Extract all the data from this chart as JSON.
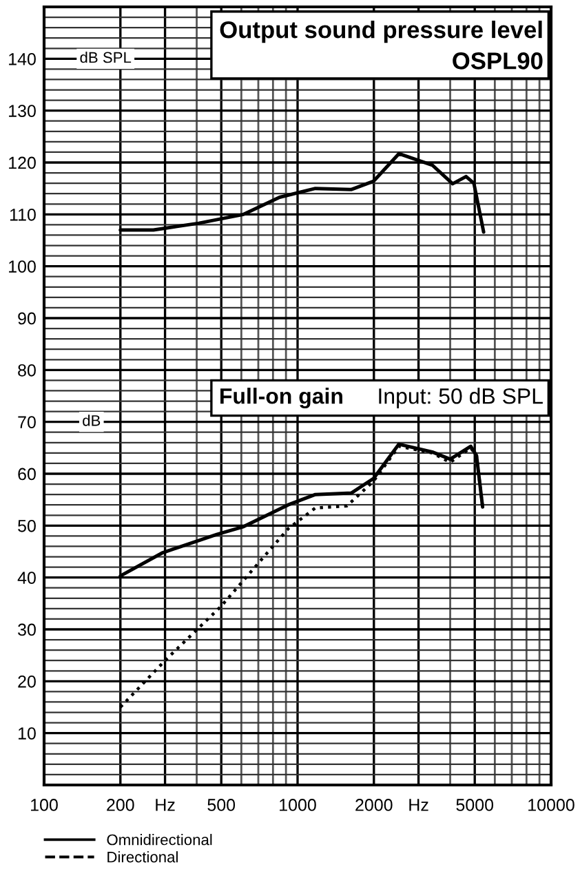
{
  "chart_data": {
    "type": "line",
    "annotations": [
      "Output sound pressure level",
      "OSPL90",
      "Full-on gain",
      "Input: 50 dB SPL",
      "dB SPL",
      "dB"
    ],
    "series": [
      {
        "color": "#000000",
        "line_style": "solid",
        "x": [
          200,
          270,
          408,
          612,
          849,
          1175,
          1632,
          1995,
          2510,
          3400,
          4090,
          4620,
          4960,
          5420
        ],
        "values": [
          107,
          107,
          108.3,
          110,
          113.3,
          115,
          114.8,
          116.4,
          121.7,
          119.5,
          115.9,
          117.3,
          116,
          106.6
        ]
      },
      {
        "name": "Omnidirectional",
        "color": "#000000",
        "line_style": "solid",
        "x": [
          200,
          294,
          480,
          612,
          918,
          1175,
          1632,
          1995,
          2510,
          3400,
          4000,
          4820,
          5080,
          5370
        ],
        "values": [
          40.3,
          44.8,
          48.3,
          49.8,
          54.0,
          56.0,
          56.3,
          59.1,
          65.7,
          64.2,
          62.8,
          65.3,
          63.5,
          53.6
        ]
      },
      {
        "name": "Directional",
        "color": "#000000",
        "line_style": "dotted",
        "x": [
          200,
          300,
          498,
          918,
          1175,
          1566,
          1995,
          2510,
          3400,
          4000,
          4820,
          5080,
          5370
        ],
        "values": [
          15.0,
          24.0,
          34.4,
          49.4,
          53.4,
          53.8,
          58.6,
          65.3,
          64.0,
          62.2,
          65.0,
          63.5,
          53.6
        ]
      }
    ],
    "log": "x",
    "xlim": [
      100,
      10000
    ],
    "xticks": [
      100,
      200,
      {
        "value": 300,
        "label": "Hz"
      },
      {
        "value": 400,
        "label": null
      },
      500,
      {
        "value": 600,
        "label": null
      },
      {
        "value": 700,
        "label": null
      },
      {
        "value": 800,
        "label": null
      },
      {
        "value": 900,
        "label": null
      },
      1000,
      2000,
      {
        "value": 3000,
        "label": "Hz"
      },
      {
        "value": 4000,
        "label": null
      },
      5000,
      {
        "value": 6000,
        "label": null
      },
      {
        "value": 7000,
        "label": null
      },
      {
        "value": 8000,
        "label": null
      },
      {
        "value": 9000,
        "label": null
      },
      10000
    ],
    "ylim": [
      0,
      150
    ],
    "yticks": [
      {
        "value": 0,
        "label": null
      },
      {
        "value": 2,
        "label": null
      },
      {
        "value": 4,
        "label": null
      },
      {
        "value": 6,
        "label": null
      },
      {
        "value": 8,
        "label": null
      },
      10,
      {
        "value": 12,
        "label": null
      },
      {
        "value": 14,
        "label": null
      },
      {
        "value": 16,
        "label": null
      },
      {
        "value": 18,
        "label": null
      },
      20,
      {
        "value": 22,
        "label": null
      },
      {
        "value": 24,
        "label": null
      },
      {
        "value": 26,
        "label": null
      },
      {
        "value": 28,
        "label": null
      },
      30,
      {
        "value": 32,
        "label": null
      },
      {
        "value": 34,
        "label": null
      },
      {
        "value": 36,
        "label": null
      },
      {
        "value": 38,
        "label": null
      },
      40,
      {
        "value": 42,
        "label": null
      },
      {
        "value": 44,
        "label": null
      },
      {
        "value": 46,
        "label": null
      },
      {
        "value": 48,
        "label": null
      },
      50,
      {
        "value": 52,
        "label": null
      },
      {
        "value": 54,
        "label": null
      },
      {
        "value": 56,
        "label": null
      },
      {
        "value": 58,
        "label": null
      },
      60,
      {
        "value": 62,
        "label": null
      },
      {
        "value": 64,
        "label": null
      },
      {
        "value": 66,
        "label": null
      },
      {
        "value": 68,
        "label": null
      },
      70,
      {
        "value": 72,
        "label": null
      },
      {
        "value": 74,
        "label": null
      },
      {
        "value": 76,
        "label": null
      },
      {
        "value": 78,
        "label": null
      },
      80,
      {
        "value": 82,
        "label": null
      },
      {
        "value": 84,
        "label": null
      },
      {
        "value": 86,
        "label": null
      },
      {
        "value": 88,
        "label": null
      },
      90,
      {
        "value": 92,
        "label": null
      },
      {
        "value": 94,
        "label": null
      },
      {
        "value": 96,
        "label": null
      },
      {
        "value": 98,
        "label": null
      },
      100,
      {
        "value": 102,
        "label": null
      },
      {
        "value": 104,
        "label": null
      },
      {
        "value": 106,
        "label": null
      },
      {
        "value": 108,
        "label": null
      },
      110,
      {
        "value": 112,
        "label": null
      },
      {
        "value": 114,
        "label": null
      },
      {
        "value": 116,
        "label": null
      },
      {
        "value": 118,
        "label": null
      },
      120,
      {
        "value": 122,
        "label": null
      },
      {
        "value": 124,
        "label": null
      },
      {
        "value": 126,
        "label": null
      },
      {
        "value": 128,
        "label": null
      },
      130,
      {
        "value": 132,
        "label": null
      },
      {
        "value": 134,
        "label": null
      },
      {
        "value": 136,
        "label": null
      },
      {
        "value": 138,
        "label": null
      },
      140,
      {
        "value": 142,
        "label": null
      },
      {
        "value": 144,
        "label": null
      },
      {
        "value": 146,
        "label": null
      },
      {
        "value": 148,
        "label": null
      },
      {
        "value": 150,
        "label": null
      }
    ],
    "grid": true,
    "legend": "bottom"
  }
}
